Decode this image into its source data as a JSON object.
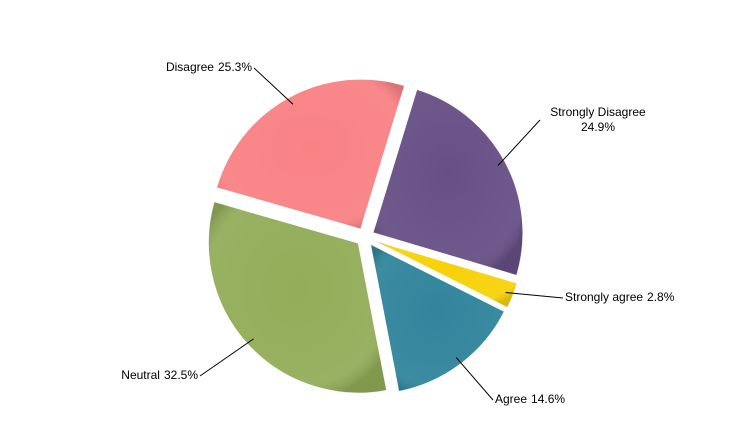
{
  "chart_data": {
    "type": "pie",
    "categories": [
      "Strongly Disagree",
      "Strongly agree",
      "Agree",
      "Neutral",
      "Disagree"
    ],
    "values": [
      24.9,
      2.8,
      14.6,
      32.5,
      25.3
    ],
    "value_labels": [
      "24.9%",
      "2.8%",
      "14.6%",
      "32.5%",
      "25.3%"
    ],
    "colors": [
      "#675086",
      "#f7d20a",
      "#31859c",
      "#93ad5a",
      "#f98285"
    ]
  }
}
